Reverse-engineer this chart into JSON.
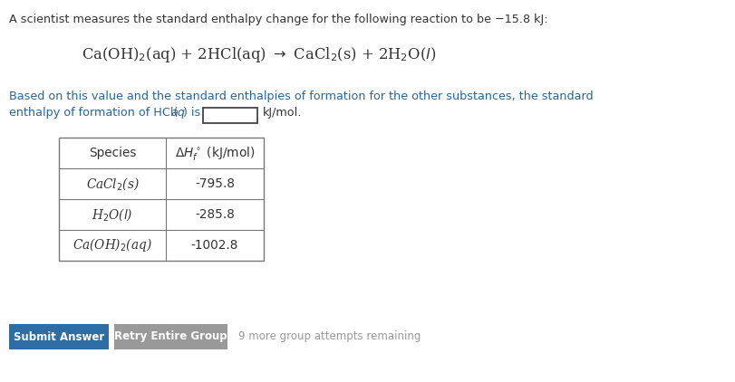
{
  "bg_color": "#ffffff",
  "text_color": "#333333",
  "link_color": "#2a6496",
  "line1": "A scientist measures the standard enthalpy change for the following reaction to be −15.8 kJ:",
  "line3a": "Based on this value and the standard enthalpies of formation for the other substances, the standard",
  "line3b_pre": "enthalpy of formation of HCl(",
  "line3b_aq": "aq",
  "line3b_post": ") is",
  "line3b_unit": "kJ/mol.",
  "table_header_col1": "Species",
  "table_rows": [
    [
      "CaCl₂(s)",
      "-795.8"
    ],
    [
      "H₂O(l)",
      "-285.8"
    ],
    [
      "Ca(OH)₂(aq)",
      "-1002.8"
    ]
  ],
  "btn1_text": "Submit Answer",
  "btn1_color": "#2e6da4",
  "btn2_text": "Retry Entire Group",
  "btn2_color": "#999999",
  "remaining_text": "9 more group attempts remaining",
  "remaining_color": "#999999",
  "fig_w": 8.12,
  "fig_h": 4.22,
  "dpi": 100
}
